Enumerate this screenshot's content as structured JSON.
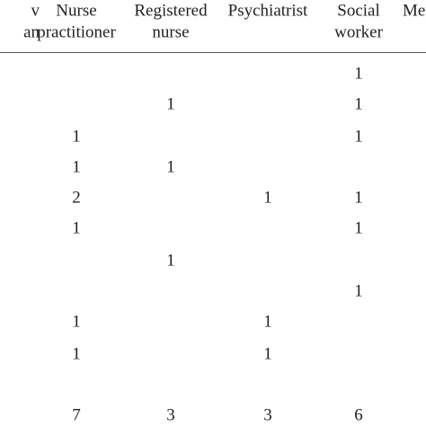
{
  "table": {
    "header": [
      [
        "v",
        "an"
      ],
      [
        "Nurse",
        "practitioner"
      ],
      [
        "Registered",
        "nurse"
      ],
      [
        "Psychiatrist"
      ],
      [
        "Social",
        "worker"
      ],
      [
        "Men"
      ]
    ],
    "rows": [
      [
        null,
        null,
        null,
        "1"
      ],
      [
        null,
        "1",
        null,
        "1"
      ],
      [
        "1",
        null,
        null,
        "1"
      ],
      [
        "1",
        "1",
        null,
        null
      ],
      [
        "2",
        null,
        "1",
        "1"
      ],
      [
        "1",
        null,
        null,
        "1"
      ],
      [
        null,
        "1",
        null,
        null
      ],
      [
        null,
        null,
        null,
        "1"
      ],
      [
        "1",
        null,
        "1",
        null
      ],
      [
        "1",
        null,
        "1",
        null
      ]
    ],
    "totals": [
      "7",
      "3",
      "3",
      "6"
    ]
  }
}
